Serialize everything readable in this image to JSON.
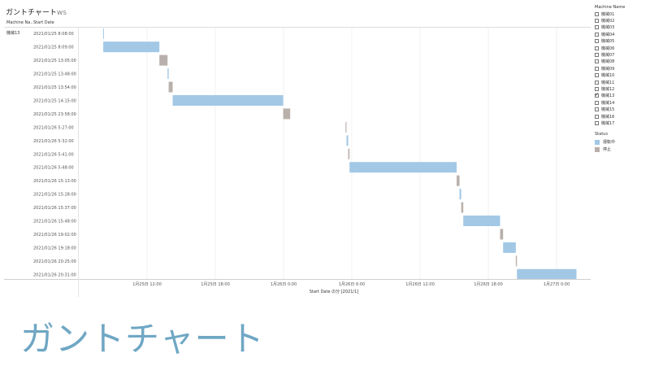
{
  "title": "ガントチャート",
  "title_suffix": "ws",
  "columns": {
    "machine": "Machine Na..",
    "start": "Start Date"
  },
  "machine_value": "機械13",
  "big_title": "ガントチャート",
  "filter": {
    "title": "Machine Name",
    "items": [
      {
        "label": "機械01",
        "checked": false
      },
      {
        "label": "機械02",
        "checked": false
      },
      {
        "label": "機械03",
        "checked": false
      },
      {
        "label": "機械04",
        "checked": false
      },
      {
        "label": "機械05",
        "checked": false
      },
      {
        "label": "機械06",
        "checked": false
      },
      {
        "label": "機械07",
        "checked": false
      },
      {
        "label": "機械08",
        "checked": false
      },
      {
        "label": "機械09",
        "checked": false
      },
      {
        "label": "機械10",
        "checked": false
      },
      {
        "label": "機械11",
        "checked": false
      },
      {
        "label": "機械12",
        "checked": false
      },
      {
        "label": "機械13",
        "checked": true
      },
      {
        "label": "機械14",
        "checked": false
      },
      {
        "label": "機械15",
        "checked": false
      },
      {
        "label": "機械16",
        "checked": false
      },
      {
        "label": "機械17",
        "checked": false
      }
    ]
  },
  "legend": {
    "title": "Status",
    "items": [
      {
        "label": "運転中",
        "color": "#a2c8e6"
      },
      {
        "label": "停止",
        "color": "#b9b0ab"
      }
    ]
  },
  "chart_data": {
    "type": "gantt",
    "xlabel": "Start Date の分 [2021/1]",
    "xlim": [
      "2021-01-25T06:00",
      "2021-01-27T03:00"
    ],
    "x_ticks": [
      {
        "t": "2021-01-25T12:00",
        "label": "1月25日 12:00"
      },
      {
        "t": "2021-01-25T18:00",
        "label": "1月25日 18:00"
      },
      {
        "t": "2021-01-26T00:00",
        "label": "1月26日 0:00"
      },
      {
        "t": "2021-01-26T06:00",
        "label": "1月26日 6:00"
      },
      {
        "t": "2021-01-26T12:00",
        "label": "1月26日 12:00"
      },
      {
        "t": "2021-01-26T18:00",
        "label": "1月26日 18:00"
      },
      {
        "t": "2021-01-27T00:00",
        "label": "1月27日 0:00"
      }
    ],
    "rows": [
      {
        "label": "2021/01/25 8:08:00",
        "start": "2021-01-25T08:08",
        "end": "2021-01-25T08:09",
        "status": "運転中"
      },
      {
        "label": "2021/01/25 8:09:00",
        "start": "2021-01-25T08:09",
        "end": "2021-01-25T13:05",
        "status": "運転中"
      },
      {
        "label": "2021/01/25 13:05:00",
        "start": "2021-01-25T13:05",
        "end": "2021-01-25T13:48",
        "status": "停止"
      },
      {
        "label": "2021/01/25 13:48:00",
        "start": "2021-01-25T13:48",
        "end": "2021-01-25T13:54",
        "status": "運転中"
      },
      {
        "label": "2021/01/25 13:54:00",
        "start": "2021-01-25T13:54",
        "end": "2021-01-25T14:15",
        "status": "停止"
      },
      {
        "label": "2021/01/25 14:15:00",
        "start": "2021-01-25T14:15",
        "end": "2021-01-25T23:58",
        "status": "運転中"
      },
      {
        "label": "2021/01/25 23:58:00",
        "start": "2021-01-25T23:58",
        "end": "2021-01-26T00:35",
        "status": "停止"
      },
      {
        "label": "2021/01/26 5:27:00",
        "start": "2021-01-26T05:27",
        "end": "2021-01-26T05:32",
        "status": "停止"
      },
      {
        "label": "2021/01/26 5:32:00",
        "start": "2021-01-26T05:32",
        "end": "2021-01-26T05:41",
        "status": "運転中"
      },
      {
        "label": "2021/01/26 5:41:00",
        "start": "2021-01-26T05:41",
        "end": "2021-01-26T05:48",
        "status": "停止"
      },
      {
        "label": "2021/01/26 5:48:00",
        "start": "2021-01-26T05:48",
        "end": "2021-01-26T15:13",
        "status": "運転中"
      },
      {
        "label": "2021/01/26 15:13:00",
        "start": "2021-01-26T15:13",
        "end": "2021-01-26T15:28",
        "status": "停止"
      },
      {
        "label": "2021/01/26 15:28:00",
        "start": "2021-01-26T15:28",
        "end": "2021-01-26T15:37",
        "status": "運転中"
      },
      {
        "label": "2021/01/26 15:37:00",
        "start": "2021-01-26T15:37",
        "end": "2021-01-26T15:48",
        "status": "停止"
      },
      {
        "label": "2021/01/26 15:48:00",
        "start": "2021-01-26T15:48",
        "end": "2021-01-26T19:02",
        "status": "運転中"
      },
      {
        "label": "2021/01/26 19:02:00",
        "start": "2021-01-26T19:02",
        "end": "2021-01-26T19:18",
        "status": "停止"
      },
      {
        "label": "2021/01/26 19:18:00",
        "start": "2021-01-26T19:18",
        "end": "2021-01-26T20:25",
        "status": "運転中"
      },
      {
        "label": "2021/01/26 20:25:00",
        "start": "2021-01-26T20:25",
        "end": "2021-01-26T20:31",
        "status": "停止"
      },
      {
        "label": "2021/01/26 20:31:00",
        "start": "2021-01-26T20:31",
        "end": "2021-01-27T01:45",
        "status": "運転中"
      }
    ]
  }
}
